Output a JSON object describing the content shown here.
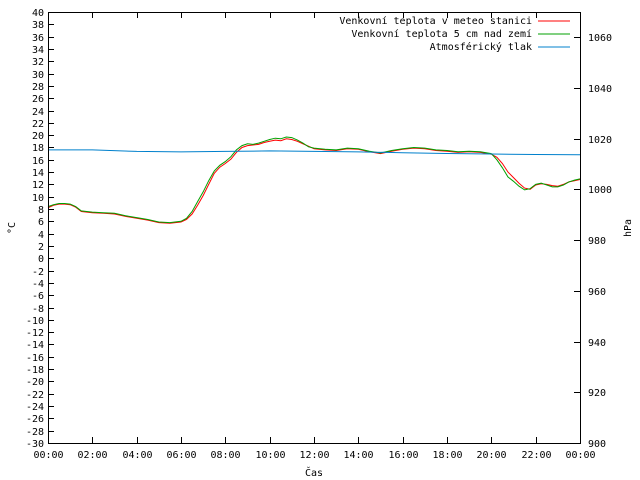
{
  "chart_data": {
    "type": "line",
    "xlabel": "Čas",
    "ylabel": "°C",
    "y2label": "hPa",
    "x_tick_labels": [
      "00:00",
      "02:00",
      "04:00",
      "06:00",
      "08:00",
      "10:00",
      "12:00",
      "14:00",
      "16:00",
      "18:00",
      "20:00",
      "22:00",
      "00:00"
    ],
    "x_range_hours": [
      0,
      24
    ],
    "ylim": [
      -30,
      40
    ],
    "y_ticks": [
      40,
      38,
      36,
      34,
      32,
      30,
      28,
      26,
      24,
      22,
      20,
      18,
      16,
      14,
      12,
      10,
      8,
      6,
      4,
      2,
      0,
      -2,
      -4,
      -6,
      -8,
      -10,
      -12,
      -14,
      -16,
      -18,
      -20,
      -22,
      -24,
      -26,
      -28,
      -30
    ],
    "y2lim": [
      900,
      1070
    ],
    "y2_ticks": [
      1060,
      1040,
      1020,
      1000,
      980,
      960,
      940,
      920,
      900
    ],
    "legend_position": "top-right",
    "series": [
      {
        "name": "Venkovní teplota v meteo stanici",
        "axis": "left",
        "color": "#ff0000",
        "x": [
          0,
          0.25,
          0.5,
          0.75,
          1,
          1.25,
          1.5,
          2,
          2.5,
          3,
          3.5,
          4,
          4.5,
          5,
          5.5,
          6,
          6.25,
          6.5,
          6.75,
          7,
          7.25,
          7.5,
          7.75,
          8,
          8.25,
          8.5,
          8.75,
          9,
          9.25,
          9.5,
          9.75,
          10,
          10.25,
          10.5,
          10.75,
          11,
          11.25,
          11.5,
          11.75,
          12,
          12.5,
          13,
          13.5,
          14,
          14.5,
          15,
          15.5,
          16,
          16.5,
          17,
          17.5,
          18,
          18.5,
          19,
          19.5,
          20,
          20.25,
          20.5,
          20.75,
          21,
          21.25,
          21.5,
          21.75,
          22,
          22.25,
          22.5,
          22.75,
          23,
          23.25,
          23.5,
          23.75,
          24
        ],
        "values": [
          8.2,
          8.6,
          8.8,
          8.8,
          8.7,
          8.3,
          7.6,
          7.4,
          7.3,
          7.2,
          6.8,
          6.5,
          6.2,
          5.8,
          5.7,
          5.9,
          6.3,
          7.2,
          8.6,
          10.2,
          12,
          13.8,
          14.8,
          15.4,
          16.1,
          17.2,
          18,
          18.3,
          18.4,
          18.5,
          18.8,
          19,
          19.2,
          19.1,
          19.4,
          19.3,
          19,
          18.6,
          18.2,
          17.8,
          17.6,
          17.5,
          17.8,
          17.7,
          17.3,
          17,
          17.4,
          17.7,
          17.9,
          17.8,
          17.5,
          17.4,
          17.2,
          17.3,
          17.2,
          16.9,
          16.4,
          15.4,
          14,
          13.1,
          12.2,
          11.4,
          11.2,
          11.9,
          12.1,
          12,
          11.8,
          11.7,
          12,
          12.4,
          12.6,
          12.8
        ]
      },
      {
        "name": "Venkovní teplota 5 cm nad zemí",
        "axis": "left",
        "color": "#00a000",
        "x": [
          0,
          0.25,
          0.5,
          0.75,
          1,
          1.25,
          1.5,
          2,
          2.5,
          3,
          3.5,
          4,
          4.5,
          5,
          5.5,
          6,
          6.25,
          6.5,
          6.75,
          7,
          7.25,
          7.5,
          7.75,
          8,
          8.25,
          8.5,
          8.75,
          9,
          9.25,
          9.5,
          9.75,
          10,
          10.25,
          10.5,
          10.75,
          11,
          11.25,
          11.5,
          11.75,
          12,
          12.5,
          13,
          13.5,
          14,
          14.5,
          15,
          15.5,
          16,
          16.5,
          17,
          17.5,
          18,
          18.5,
          19,
          19.5,
          20,
          20.25,
          20.5,
          20.75,
          21,
          21.25,
          21.5,
          21.75,
          22,
          22.25,
          22.5,
          22.75,
          23,
          23.25,
          23.5,
          23.75,
          24
        ],
        "values": [
          8.4,
          8.7,
          8.9,
          8.9,
          8.8,
          8.4,
          7.7,
          7.5,
          7.4,
          7.3,
          6.9,
          6.6,
          6.3,
          5.9,
          5.8,
          6,
          6.5,
          7.6,
          9.2,
          10.8,
          12.6,
          14.2,
          15.1,
          15.7,
          16.5,
          17.6,
          18.3,
          18.6,
          18.5,
          18.7,
          19,
          19.3,
          19.5,
          19.4,
          19.7,
          19.6,
          19.2,
          18.7,
          18.1,
          17.9,
          17.7,
          17.6,
          17.9,
          17.8,
          17.4,
          17.1,
          17.5,
          17.8,
          18,
          17.9,
          17.6,
          17.5,
          17.3,
          17.4,
          17.3,
          17,
          16,
          14.7,
          13.2,
          12.5,
          11.7,
          11.1,
          11.3,
          12,
          12.2,
          11.9,
          11.6,
          11.6,
          11.9,
          12.4,
          12.7,
          12.9
        ]
      },
      {
        "name": "Atmosférický tlak",
        "axis": "right",
        "color": "#0080cc",
        "x": [
          0,
          2,
          4,
          6,
          8,
          10,
          12,
          14,
          16,
          18,
          20,
          22,
          24
        ],
        "values": [
          1015.6,
          1015.6,
          1015,
          1014.8,
          1015,
          1015.2,
          1015,
          1014.8,
          1014.5,
          1014.2,
          1014,
          1013.8,
          1013.7
        ]
      }
    ]
  }
}
